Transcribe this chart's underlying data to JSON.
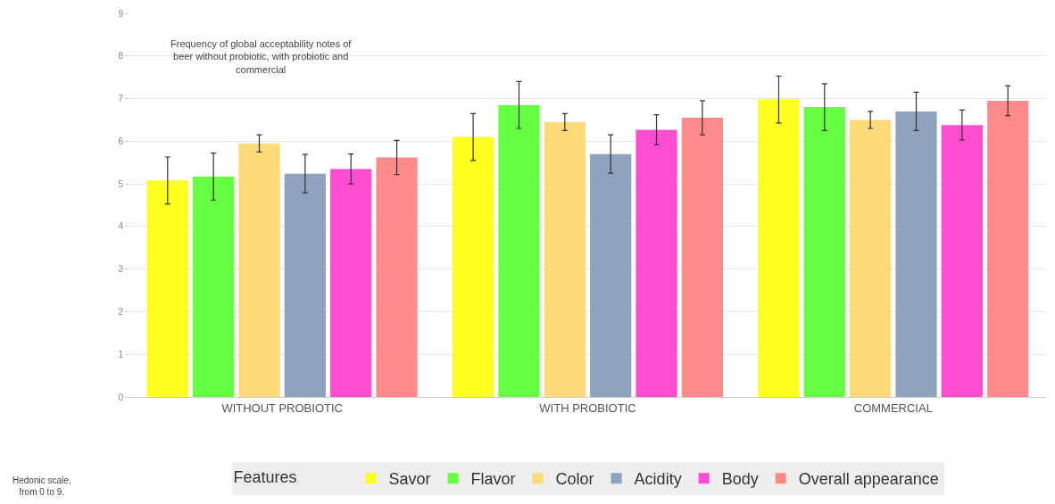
{
  "chart_data": {
    "type": "bar",
    "title": "Frequency of global acceptability notes of beer without probiotic, with probiotic and commercial",
    "categories": [
      "WITHOUT PROBIOTIC",
      "WITH PROBIOTIC",
      "COMMERCIAL"
    ],
    "series": [
      {
        "name": "Savor",
        "color": "#ffff22",
        "values": [
          5.08,
          6.1,
          6.98
        ],
        "errors": [
          0.55,
          0.55,
          0.55
        ]
      },
      {
        "name": "Flavor",
        "color": "#66ff44",
        "values": [
          5.17,
          6.85,
          6.8
        ],
        "errors": [
          0.55,
          0.55,
          0.55
        ]
      },
      {
        "name": "Color",
        "color": "#ffd97a",
        "values": [
          5.95,
          6.45,
          6.5
        ],
        "errors": [
          0.2,
          0.2,
          0.2
        ]
      },
      {
        "name": "Acidity",
        "color": "#8fa3bf",
        "values": [
          5.24,
          5.7,
          6.7
        ],
        "errors": [
          0.45,
          0.45,
          0.45
        ]
      },
      {
        "name": "Body",
        "color": "#ff4dd2",
        "values": [
          5.35,
          6.27,
          6.38
        ],
        "errors": [
          0.35,
          0.35,
          0.35
        ]
      },
      {
        "name": "Overall appearance",
        "color": "#ff8a8a",
        "values": [
          5.62,
          6.55,
          6.95
        ],
        "errors": [
          0.4,
          0.4,
          0.35
        ]
      }
    ],
    "ylim": [
      0,
      9
    ],
    "yticks": [
      0,
      1,
      2,
      3,
      4,
      5,
      6,
      7,
      8,
      9
    ],
    "grid": "y",
    "legend": "bottom",
    "legend_title": "Features",
    "annotations": [
      "Hedonic scale, from 0 to 9."
    ]
  }
}
